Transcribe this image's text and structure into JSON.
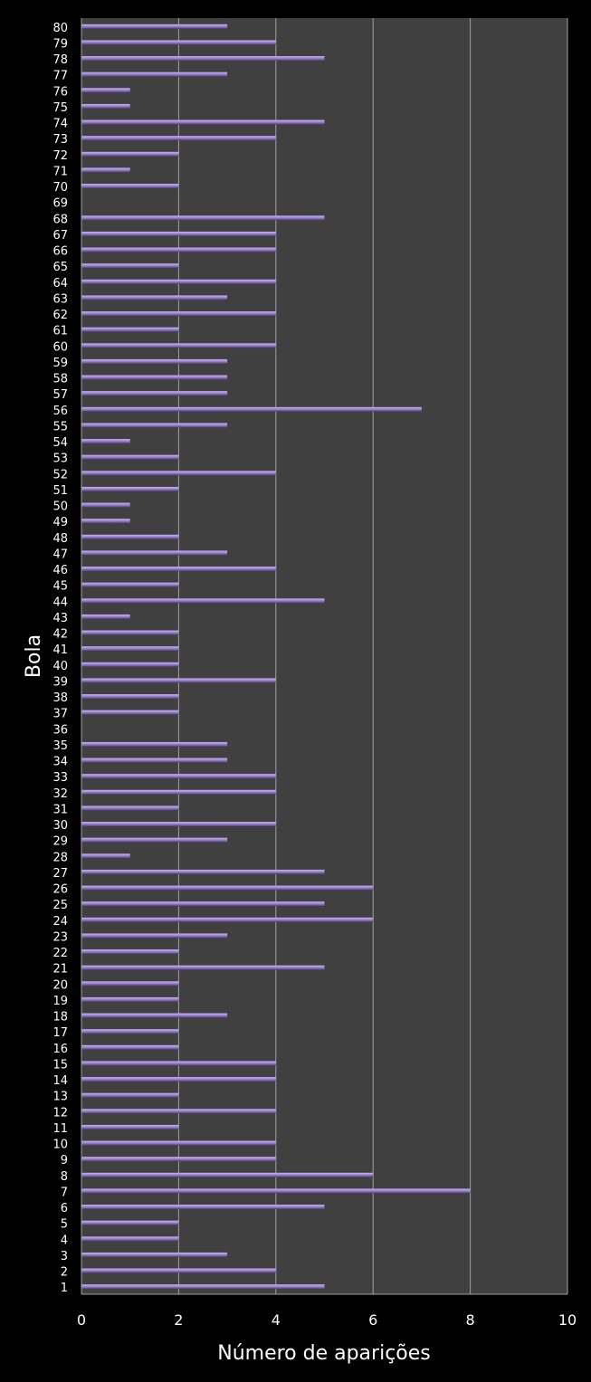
{
  "chart_data": {
    "type": "bar",
    "orientation": "horizontal",
    "xlabel": "Número de aparições",
    "ylabel": "Bola",
    "xlim": [
      0,
      10
    ],
    "xticks": [
      "0",
      "2",
      "4",
      "6",
      "8",
      "10"
    ],
    "grid": true,
    "legend": "none",
    "colors": {
      "background": "#000000",
      "plot_area": "#404040",
      "bar": "#9a7fce",
      "bar_highlight": "#c8b2ef",
      "grid": "#a0a0a0",
      "text": "#ffffff"
    },
    "categories": [
      "1",
      "2",
      "3",
      "4",
      "5",
      "6",
      "7",
      "8",
      "9",
      "10",
      "11",
      "12",
      "13",
      "14",
      "15",
      "16",
      "17",
      "18",
      "19",
      "20",
      "21",
      "22",
      "23",
      "24",
      "25",
      "26",
      "27",
      "28",
      "29",
      "30",
      "31",
      "32",
      "33",
      "34",
      "35",
      "36",
      "37",
      "38",
      "39",
      "40",
      "41",
      "42",
      "43",
      "44",
      "45",
      "46",
      "47",
      "48",
      "49",
      "50",
      "51",
      "52",
      "53",
      "54",
      "55",
      "56",
      "57",
      "58",
      "59",
      "60",
      "61",
      "62",
      "63",
      "64",
      "65",
      "66",
      "67",
      "68",
      "69",
      "70",
      "71",
      "72",
      "73",
      "74",
      "75",
      "76",
      "77",
      "78",
      "79",
      "80"
    ],
    "values": [
      5,
      4,
      3,
      2,
      2,
      5,
      8,
      6,
      4,
      4,
      2,
      4,
      2,
      4,
      4,
      2,
      2,
      3,
      2,
      2,
      5,
      2,
      3,
      6,
      5,
      6,
      5,
      1,
      3,
      4,
      2,
      4,
      4,
      3,
      3,
      0,
      2,
      2,
      4,
      2,
      2,
      2,
      1,
      5,
      2,
      4,
      3,
      2,
      1,
      1,
      2,
      4,
      2,
      1,
      3,
      7,
      3,
      3,
      3,
      4,
      2,
      4,
      3,
      4,
      2,
      4,
      4,
      5,
      0,
      2,
      1,
      2,
      4,
      5,
      1,
      1,
      3,
      5,
      4,
      3
    ]
  }
}
